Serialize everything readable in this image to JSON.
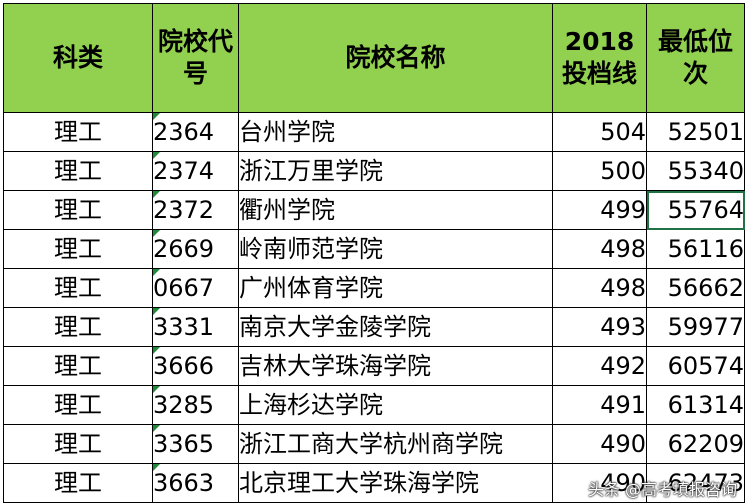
{
  "headers": {
    "category": "科类",
    "code": "院校代号",
    "name": "院校名称",
    "score": "2018投档线",
    "rank": "最低位次"
  },
  "rows": [
    {
      "category": "理工",
      "code": "2364",
      "name": "台州学院",
      "score": "504",
      "rank": "52501"
    },
    {
      "category": "理工",
      "code": "2374",
      "name": "浙江万里学院",
      "score": "500",
      "rank": "55340"
    },
    {
      "category": "理工",
      "code": "2372",
      "name": "衢州学院",
      "score": "499",
      "rank": "55764"
    },
    {
      "category": "理工",
      "code": "2669",
      "name": "岭南师范学院",
      "score": "498",
      "rank": "56116"
    },
    {
      "category": "理工",
      "code": "0667",
      "name": "广州体育学院",
      "score": "498",
      "rank": "56662"
    },
    {
      "category": "理工",
      "code": "3331",
      "name": "南京大学金陵学院",
      "score": "493",
      "rank": "59977"
    },
    {
      "category": "理工",
      "code": "3666",
      "name": "吉林大学珠海学院",
      "score": "492",
      "rank": "60574"
    },
    {
      "category": "理工",
      "code": "3285",
      "name": "上海杉达学院",
      "score": "491",
      "rank": "61314"
    },
    {
      "category": "理工",
      "code": "3365",
      "name": "浙江工商大学杭州商学院",
      "score": "490",
      "rank": "62209"
    },
    {
      "category": "理工",
      "code": "3663",
      "name": "北京理工大学珠海学院",
      "score": "490",
      "rank": "62473"
    }
  ],
  "watermark": "头条 @高考填报咨询",
  "colors": {
    "header_bg": "#92d050",
    "selection": "#217346",
    "note_marker": "#1f8a3a"
  }
}
